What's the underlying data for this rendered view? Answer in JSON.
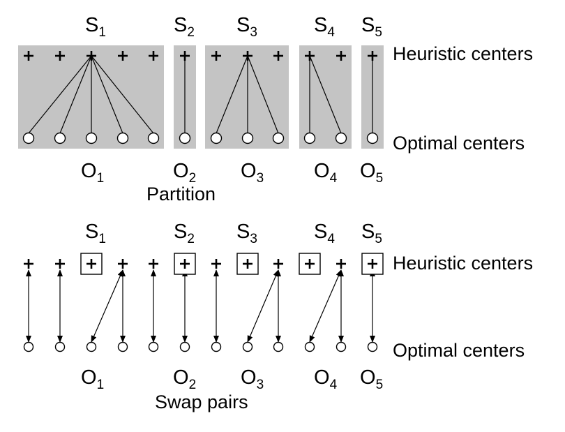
{
  "title_partition": "Partition",
  "title_swap": "Swap pairs",
  "heuristic_label": "Heuristic centers",
  "optimal_label": "Optimal centers",
  "s_letter": "S",
  "o_letter": "O",
  "groups": [
    {
      "index": "1",
      "heuristic_count": 5,
      "optimal_count": 5
    },
    {
      "index": "2",
      "heuristic_count": 1,
      "optimal_count": 1
    },
    {
      "index": "3",
      "heuristic_count": 3,
      "optimal_count": 3
    },
    {
      "index": "4",
      "heuristic_count": 2,
      "optimal_count": 2
    },
    {
      "index": "5",
      "heuristic_count": 1,
      "optimal_count": 1
    }
  ],
  "partition_edges": [
    [
      2,
      0
    ],
    [
      2,
      1
    ],
    [
      2,
      2
    ],
    [
      2,
      3
    ],
    [
      2,
      4
    ],
    [
      5,
      5
    ],
    [
      7,
      6
    ],
    [
      7,
      7
    ],
    [
      7,
      8
    ],
    [
      9,
      9
    ],
    [
      9,
      10
    ],
    [
      11,
      11
    ]
  ],
  "swap_edges": [
    [
      0,
      0
    ],
    [
      1,
      1
    ],
    [
      3,
      2
    ],
    [
      3,
      3
    ],
    [
      4,
      4
    ],
    [
      5,
      5
    ],
    [
      6,
      6
    ],
    [
      8,
      7
    ],
    [
      8,
      8
    ],
    [
      10,
      9
    ],
    [
      10,
      10
    ],
    [
      11,
      11
    ]
  ],
  "boxed_heuristics": [
    2,
    5,
    7,
    9,
    11
  ],
  "colors": {
    "panel": "#c4c4c4",
    "line": "#000000",
    "node_fill": "#ffffff"
  }
}
